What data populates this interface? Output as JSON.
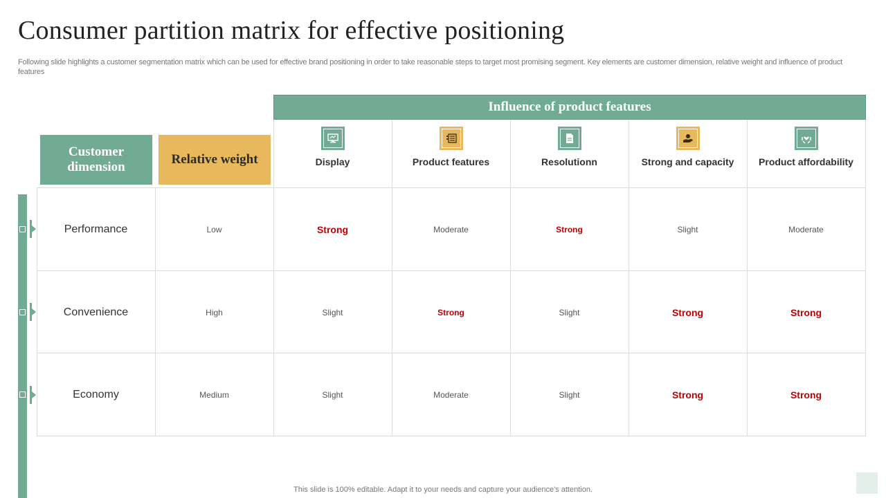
{
  "title": "Consumer partition matrix for effective positioning",
  "subtitle": "Following slide highlights a customer segmentation matrix which can be used for effective  brand positioning in order to take reasonable steps to target most promising segment. Key elements are customer dimension, relative weight and influence of product features",
  "headers": {
    "customer_dimension": "Customer dimension",
    "relative_weight": "Relative weight",
    "influence": "Influence of product features"
  },
  "features": [
    {
      "label": "Display",
      "icon": "monitor-icon",
      "color": "#72ab93"
    },
    {
      "label": "Product features",
      "icon": "list-icon",
      "color": "#e8b85d"
    },
    {
      "label": "Resolutionn",
      "icon": "document-icon",
      "color": "#72ab93"
    },
    {
      "label": "Strong and capacity",
      "icon": "hand-coin-icon",
      "color": "#e8b85d"
    },
    {
      "label": "Product affordability",
      "icon": "hand-heart-icon",
      "color": "#72ab93"
    }
  ],
  "rows": [
    {
      "dimension": "Performance",
      "weight": "Low",
      "values": [
        "Strong",
        "Moderate",
        "Strong",
        "Slight",
        "Moderate"
      ]
    },
    {
      "dimension": "Convenience",
      "weight": "High",
      "values": [
        "Slight",
        "Strong",
        "Slight",
        "Strong",
        "Strong"
      ]
    },
    {
      "dimension": "Economy",
      "weight": "Medium",
      "values": [
        "Slight",
        "Moderate",
        "Slight",
        "Strong",
        "Strong"
      ]
    }
  ],
  "footer": "This slide is 100% editable. Adapt it to your needs and capture your audience's attention.",
  "colors": {
    "accent_green": "#72ab93",
    "accent_yellow": "#e8b85d",
    "strong_red": "#c00000"
  }
}
